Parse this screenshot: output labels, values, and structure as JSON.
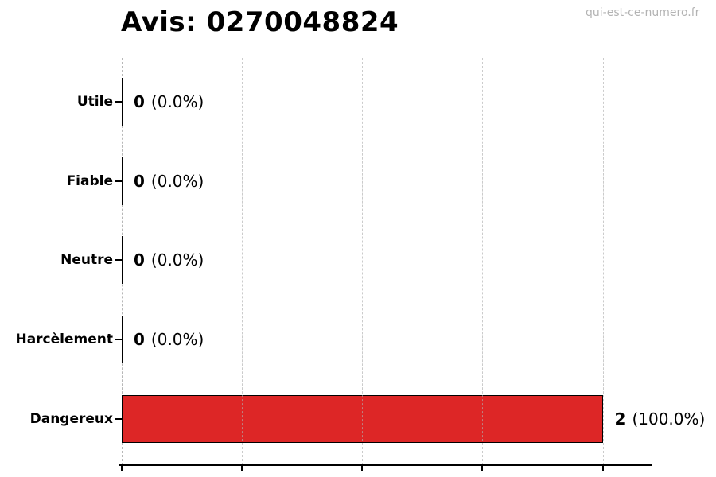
{
  "page": {
    "title": "Avis: 0270048824",
    "watermark": "qui-est-ce-numero.fr"
  },
  "chart_data": {
    "type": "bar",
    "orientation": "horizontal",
    "title": "Avis: 0270048824",
    "xlabel": "",
    "ylabel": "",
    "categories": [
      "Utile",
      "Fiable",
      "Neutre",
      "Harcèlement",
      "Dangereux"
    ],
    "values": [
      0,
      0,
      0,
      0,
      2
    ],
    "value_labels": [
      {
        "count": "0",
        "pct": "(0.0%)"
      },
      {
        "count": "0",
        "pct": "(0.0%)"
      },
      {
        "count": "0",
        "pct": "(0.0%)"
      },
      {
        "count": "0",
        "pct": "(0.0%)"
      },
      {
        "count": "2",
        "pct": "(100.0%)"
      }
    ],
    "xlim": [
      0,
      2.2
    ],
    "x_gridlines": [
      0,
      0.5,
      1.0,
      1.5,
      2.0
    ],
    "grid": true,
    "legend_position": "none",
    "colors": {
      "bar_fill": "#dd2626",
      "bar_edge": "#000000",
      "gridline": "#afafaf",
      "watermark": "#b3b3b3",
      "title_text": "#000000"
    }
  }
}
